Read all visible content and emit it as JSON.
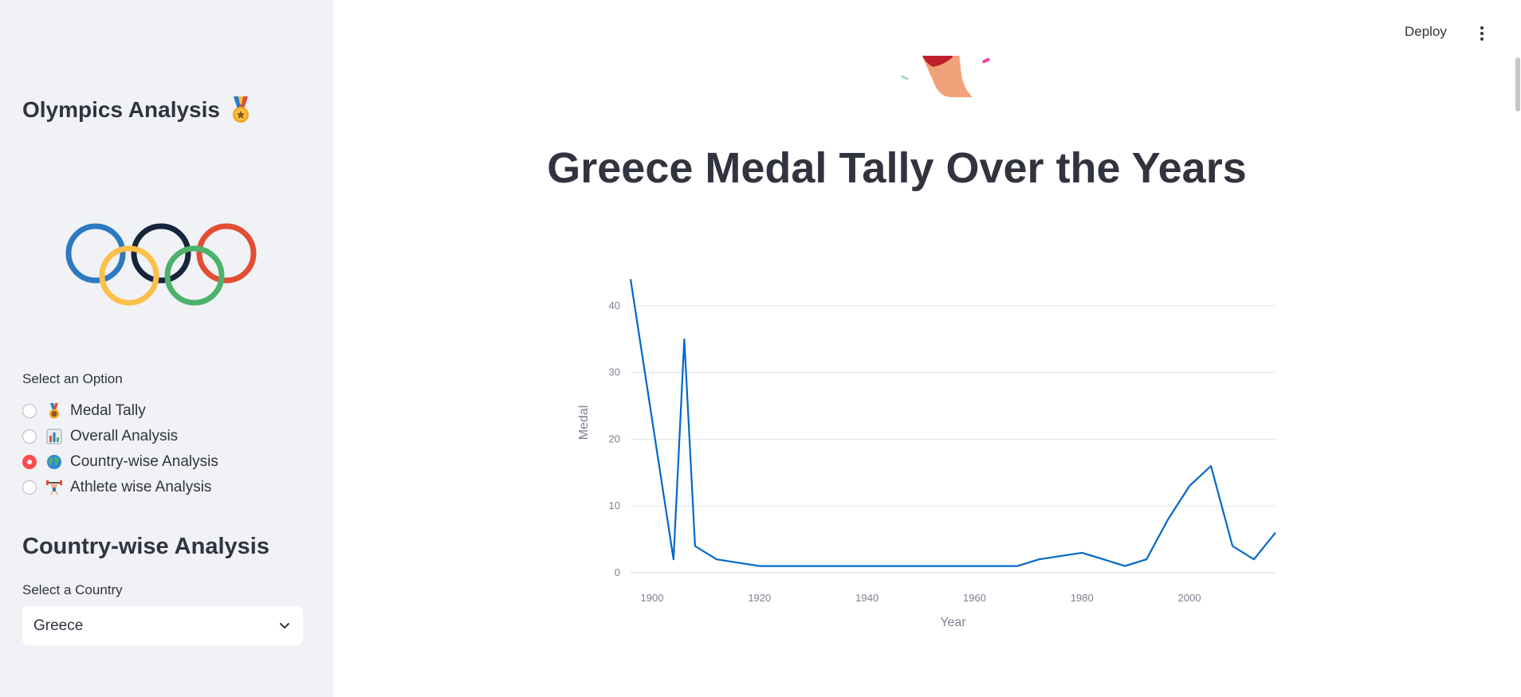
{
  "sidebar": {
    "app_title": "Olympics Analysis",
    "option_label": "Select an Option",
    "options": [
      {
        "label": "Medal Tally",
        "icon": "medal-icon",
        "selected": false
      },
      {
        "label": "Overall Analysis",
        "icon": "bar-chart-icon",
        "selected": false
      },
      {
        "label": "Country-wise Analysis",
        "icon": "globe-icon",
        "selected": true
      },
      {
        "label": "Athlete wise Analysis",
        "icon": "weightlifter-icon",
        "selected": false
      }
    ],
    "section_heading": "Country-wise Analysis",
    "country_label": "Select a Country",
    "country_value": "Greece"
  },
  "header": {
    "deploy_label": "Deploy"
  },
  "main": {
    "title": "Greece Medal Tally Over the Years"
  },
  "colors": {
    "accent": "#ff4b4b",
    "line": "#0068c9",
    "ring_blue": "#2c7ac1",
    "ring_black": "#16253a",
    "ring_red": "#e34d32",
    "ring_yellow": "#fcbf49",
    "ring_green": "#4db26a"
  },
  "chart_data": {
    "type": "line",
    "xlabel": "Year",
    "ylabel": "Medal",
    "xlim": [
      1896,
      2016
    ],
    "ylim": [
      0,
      45
    ],
    "x_ticks": [
      1900,
      1920,
      1940,
      1960,
      1980,
      2000
    ],
    "y_ticks": [
      0,
      10,
      20,
      30,
      40
    ],
    "grid": true,
    "series": [
      {
        "x": [
          1896,
          1904,
          1906,
          1908,
          1912,
          1920,
          1924,
          1928,
          1932,
          1936,
          1948,
          1952,
          1956,
          1960,
          1964,
          1968,
          1972,
          1976,
          1980,
          1984,
          1988,
          1992,
          1996,
          2000,
          2004,
          2008,
          2012,
          2016
        ],
        "y": [
          44,
          2,
          35,
          4,
          2,
          1,
          1,
          1,
          1,
          1,
          1,
          1,
          1,
          1,
          1,
          1,
          2,
          2.5,
          3,
          2,
          1,
          2,
          8,
          13,
          16,
          4,
          2,
          6
        ]
      }
    ]
  }
}
